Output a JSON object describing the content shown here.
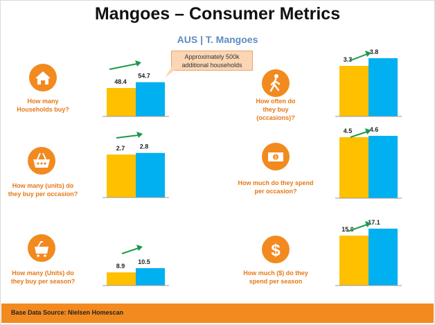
{
  "header": {
    "title": "Mangoes – Consumer Metrics",
    "subtitle": "AUS | T. Mangoes"
  },
  "callout": {
    "line1": "Approximately 500k",
    "line2": "additional households"
  },
  "footer": {
    "source": "Base Data Source: Nielsen Homescan"
  },
  "colors": {
    "bar_prior": "#ffc000",
    "bar_current": "#00b0f0",
    "accent": "#f28a1f",
    "arrow": "#1a9a4a"
  },
  "panels": [
    {
      "icon": "house-icon",
      "question": [
        "How many",
        "Households buy?"
      ]
    },
    {
      "icon": "basket-icon",
      "question": [
        "How many (units) do",
        "they buy per occasion?"
      ]
    },
    {
      "icon": "cart-icon",
      "question": [
        "How many (Units) do",
        "they buy per season?"
      ]
    },
    {
      "icon": "walking-person-icon",
      "question": [
        "How often do",
        "they buy",
        "(occasions)?"
      ]
    },
    {
      "icon": "banknote-icon",
      "question": [
        "How much do they spend",
        "per occasion?"
      ]
    },
    {
      "icon": "dollar-icon",
      "question": [
        "How much ($) do they",
        "spend per season"
      ]
    }
  ],
  "chart_data": [
    {
      "type": "bar",
      "metric": "How many Households buy?",
      "values": [
        48.4,
        54.7
      ]
    },
    {
      "type": "bar",
      "metric": "How many (units) do they buy per occasion?",
      "values": [
        2.7,
        2.8
      ]
    },
    {
      "type": "bar",
      "metric": "How many (Units) do they buy per season?",
      "values": [
        8.9,
        10.5
      ]
    },
    {
      "type": "bar",
      "metric": "How often do they buy (occasions)?",
      "values": [
        3.3,
        3.8
      ]
    },
    {
      "type": "bar",
      "metric": "How much do they spend per occasion?",
      "values": [
        4.5,
        4.6
      ]
    },
    {
      "type": "bar",
      "metric": "How much ($) do they spend per season",
      "values": [
        15.0,
        17.1
      ]
    }
  ]
}
